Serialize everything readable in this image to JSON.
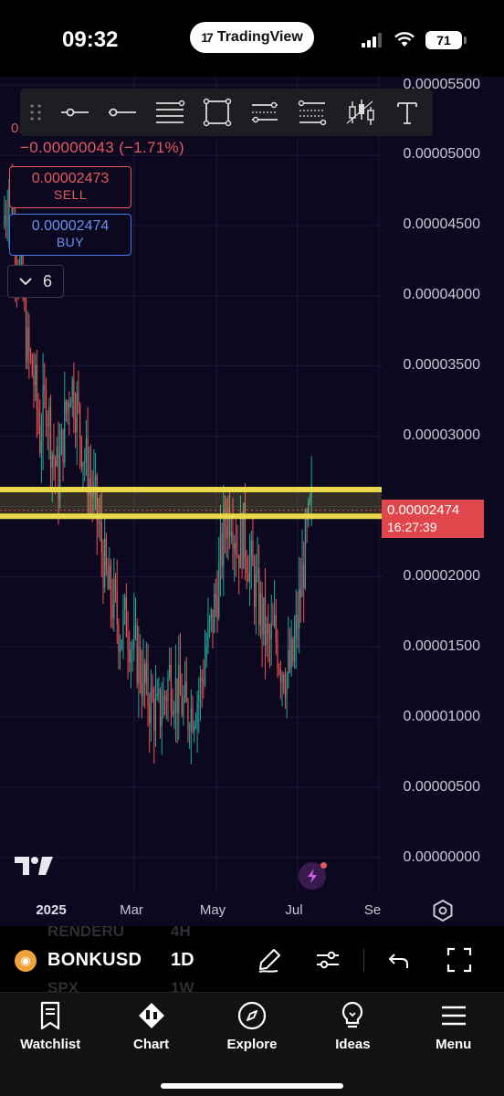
{
  "status_bar": {
    "time": "09:32",
    "app_pill": "TradingView",
    "battery": "71"
  },
  "toolbar": {
    "tools": [
      "grip-icon",
      "horizontal-ray-icon",
      "horizontal-line-icon",
      "lines-icon",
      "rectangle-icon",
      "parallel-channel-icon",
      "fib-retracement-icon",
      "long-short-icon",
      "text-tool-icon"
    ]
  },
  "legend": {
    "ohlc_prefix": "0.",
    "change": "−0.00000043 (−1.71%)"
  },
  "trade": {
    "sell_price": "0.00002473",
    "sell_label": "SELL",
    "buy_price": "0.00002474",
    "buy_label": "BUY",
    "indicators_count": "6"
  },
  "price_axis": {
    "ticks": [
      "0.00005500",
      "0.00005000",
      "0.00004500",
      "0.00004000",
      "0.00003500",
      "0.00003000",
      "0.00002000",
      "0.00001500",
      "0.00001000",
      "0.00000500",
      "0.00000000"
    ],
    "last_price": "0.00002474",
    "countdown": "16:27:39"
  },
  "time_axis": {
    "ticks": [
      "2025",
      "Mar",
      "May",
      "Jul",
      "Se"
    ]
  },
  "symbol_bar": {
    "symbol": "BONKUSD",
    "interval": "1D",
    "ghost_row1_symbol": "RENDERU",
    "ghost_row1_interval": "4H",
    "ghost_row2_symbol": "SPX",
    "ghost_row2_interval": "1W"
  },
  "nav": [
    {
      "label": "Watchlist",
      "icon": "watchlist-icon"
    },
    {
      "label": "Chart",
      "icon": "chart-icon"
    },
    {
      "label": "Explore",
      "icon": "compass-icon"
    },
    {
      "label": "Ideas",
      "icon": "lightbulb-icon"
    },
    {
      "label": "Menu",
      "icon": "menu-icon"
    }
  ],
  "chart_data": {
    "type": "candlestick",
    "symbol": "BONKUSD",
    "interval": "1D",
    "ylim": [
      0,
      5.6e-05
    ],
    "x_ticks": [
      "2025",
      "Mar",
      "May",
      "Jul",
      "Se"
    ],
    "horizontal_zone": [
      2.43e-05,
      2.62e-05
    ],
    "last_price": 2.474e-05,
    "colors": {
      "up": "#26a69a",
      "down": "#ef5350",
      "zone": "#e8d84a",
      "background": "#0c0820",
      "price_tag": "#e0464c"
    },
    "close_path": [
      [
        0,
        4.5e-05
      ],
      [
        1,
        4.8e-05
      ],
      [
        2,
        4.4e-05
      ],
      [
        3,
        4.1e-05
      ],
      [
        4,
        3.6e-05
      ],
      [
        5,
        3.4e-05
      ],
      [
        6,
        3e-05
      ],
      [
        7,
        3.3e-05
      ],
      [
        8,
        2.9e-05
      ],
      [
        9,
        2.7e-05
      ],
      [
        10,
        3.1e-05
      ],
      [
        11,
        3.4e-05
      ],
      [
        12,
        3.2e-05
      ],
      [
        13,
        2.9e-05
      ],
      [
        14,
        2.7e-05
      ],
      [
        15,
        2.5e-05
      ],
      [
        16,
        2.2e-05
      ],
      [
        17,
        1.9e-05
      ],
      [
        18,
        1.8e-05
      ],
      [
        19,
        1.6e-05
      ],
      [
        20,
        1.7e-05
      ],
      [
        21,
        1.5e-05
      ],
      [
        22,
        1.4e-05
      ],
      [
        23,
        1.2e-05
      ],
      [
        24,
        1.1e-05
      ],
      [
        25,
        1e-05
      ],
      [
        26,
        1.1e-05
      ],
      [
        27,
        1.3e-05
      ],
      [
        28,
        1.2e-05
      ],
      [
        29,
        1.1e-05
      ],
      [
        30,
        1e-05
      ],
      [
        31,
        1.1e-05
      ],
      [
        32,
        1.2e-05
      ],
      [
        33,
        1.5e-05
      ],
      [
        34,
        1.7e-05
      ],
      [
        35,
        2e-05
      ],
      [
        36,
        2.4e-05
      ],
      [
        37,
        2.5e-05
      ],
      [
        38,
        2.2e-05
      ],
      [
        39,
        2.3e-05
      ],
      [
        40,
        2.1e-05
      ],
      [
        41,
        1.9e-05
      ],
      [
        42,
        1.7e-05
      ],
      [
        43,
        1.5e-05
      ],
      [
        44,
        1.6e-05
      ],
      [
        45,
        1.4e-05
      ],
      [
        46,
        1.3e-05
      ],
      [
        47,
        1.4e-05
      ],
      [
        48,
        1.8e-05
      ],
      [
        49,
        2.2e-05
      ],
      [
        50,
        2.5e-05
      ]
    ]
  }
}
